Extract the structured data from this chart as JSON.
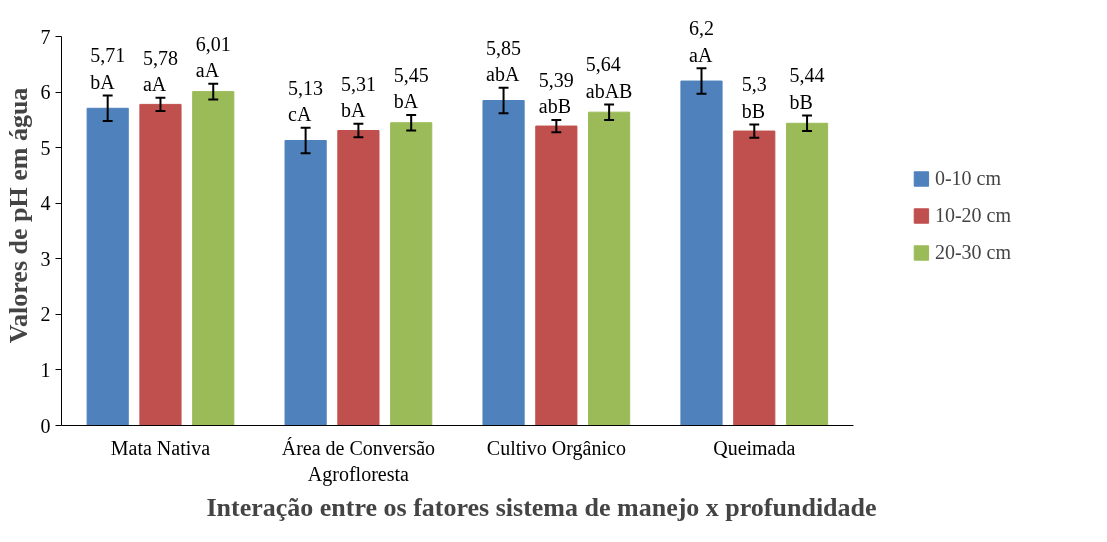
{
  "chart_data": {
    "type": "bar",
    "xlabel": "Interação entre os fatores sistema de manejo x profundidade",
    "ylabel": "Valores de pH em água",
    "categories": [
      "Mata Nativa",
      "Área de Conversão Agrofloresta",
      "Cultivo Orgânico",
      "Queimada"
    ],
    "series": [
      {
        "name": "0-10 cm",
        "color": "#4f81bd",
        "values": [
          5.71,
          5.13,
          5.85,
          6.2
        ],
        "errors": [
          0.23,
          0.23,
          0.23,
          0.23
        ],
        "value_labels": [
          "5,71\nbA",
          "5,13\ncA",
          "5,85\nabA",
          "6,2\naA"
        ]
      },
      {
        "name": "10-20 cm",
        "color": "#c0504d",
        "values": [
          5.78,
          5.31,
          5.39,
          5.3
        ],
        "errors": [
          0.12,
          0.12,
          0.11,
          0.12
        ],
        "value_labels": [
          "5,78\naA",
          "5,31\nbA",
          "5,39\nabB",
          "5,3\nbB"
        ]
      },
      {
        "name": "20-30 cm",
        "color": "#9bbb59",
        "values": [
          6.01,
          5.45,
          5.64,
          5.44
        ],
        "errors": [
          0.14,
          0.14,
          0.14,
          0.14
        ],
        "value_labels": [
          "6,01\naA",
          "5,45\nbA",
          "5,64\nabAB",
          "5,44\nbB"
        ]
      }
    ],
    "ylim": [
      0,
      7
    ],
    "yticks": [
      0,
      1,
      2,
      3,
      4,
      5,
      6,
      7
    ],
    "grid": false,
    "legend": "right"
  }
}
